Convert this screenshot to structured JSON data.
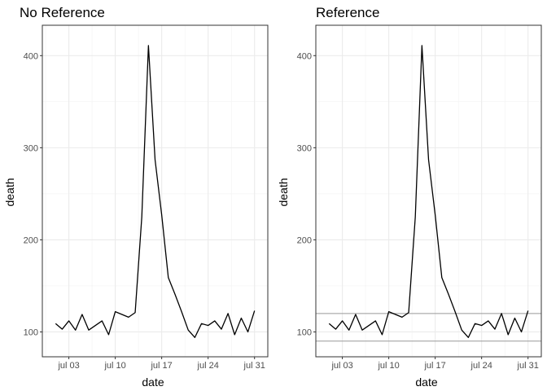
{
  "chart_data": [
    {
      "type": "line",
      "title": "No Reference",
      "xlabel": "date",
      "ylabel": "death",
      "x_tick_labels": [
        "jul 03",
        "jul 10",
        "jul 17",
        "jul 24",
        "jul 31"
      ],
      "y_tick_labels": [
        "100",
        "200",
        "300",
        "400"
      ],
      "x_ticks": [
        "2021-07-03",
        "2021-07-10",
        "2021-07-17",
        "2021-07-24",
        "2021-07-31"
      ],
      "y_ticks": [
        100,
        200,
        300,
        400
      ],
      "xlim": [
        "2020-06-29",
        "2020-08-02"
      ],
      "ylim": [
        73,
        433
      ],
      "grid": true,
      "reference_lines": [],
      "x": [
        "2021-07-01",
        "2021-07-02",
        "2021-07-03",
        "2021-07-04",
        "2021-07-05",
        "2021-07-06",
        "2021-07-07",
        "2021-07-08",
        "2021-07-09",
        "2021-07-10",
        "2021-07-11",
        "2021-07-12",
        "2021-07-13",
        "2021-07-14",
        "2021-07-15",
        "2021-07-16",
        "2021-07-17",
        "2021-07-18",
        "2021-07-19",
        "2021-07-20",
        "2021-07-21",
        "2021-07-22",
        "2021-07-23",
        "2021-07-24",
        "2021-07-25",
        "2021-07-26",
        "2021-07-27",
        "2021-07-28",
        "2021-07-29",
        "2021-07-30",
        "2021-07-31"
      ],
      "y": [
        109,
        103,
        112,
        102,
        119,
        102,
        107,
        112,
        97,
        122,
        119,
        116,
        121,
        225,
        411,
        287,
        227,
        159,
        141,
        122,
        102,
        94,
        109,
        107,
        112,
        103,
        120,
        97,
        115,
        100,
        123
      ]
    },
    {
      "type": "line",
      "title": "Reference",
      "xlabel": "date",
      "ylabel": "death",
      "x_tick_labels": [
        "jul 03",
        "jul 10",
        "jul 17",
        "jul 24",
        "jul 31"
      ],
      "y_tick_labels": [
        "100",
        "200",
        "300",
        "400"
      ],
      "x_ticks": [
        "2021-07-03",
        "2021-07-10",
        "2021-07-17",
        "2021-07-24",
        "2021-07-31"
      ],
      "y_ticks": [
        100,
        200,
        300,
        400
      ],
      "xlim": [
        "2020-06-29",
        "2020-08-02"
      ],
      "ylim": [
        73,
        433
      ],
      "grid": true,
      "reference_lines": [
        120,
        90
      ],
      "x": [
        "2021-07-01",
        "2021-07-02",
        "2021-07-03",
        "2021-07-04",
        "2021-07-05",
        "2021-07-06",
        "2021-07-07",
        "2021-07-08",
        "2021-07-09",
        "2021-07-10",
        "2021-07-11",
        "2021-07-12",
        "2021-07-13",
        "2021-07-14",
        "2021-07-15",
        "2021-07-16",
        "2021-07-17",
        "2021-07-18",
        "2021-07-19",
        "2021-07-20",
        "2021-07-21",
        "2021-07-22",
        "2021-07-23",
        "2021-07-24",
        "2021-07-25",
        "2021-07-26",
        "2021-07-27",
        "2021-07-28",
        "2021-07-29",
        "2021-07-30",
        "2021-07-31"
      ],
      "y": [
        109,
        103,
        112,
        102,
        119,
        102,
        107,
        112,
        97,
        122,
        119,
        116,
        121,
        225,
        411,
        287,
        227,
        159,
        141,
        122,
        102,
        94,
        109,
        107,
        112,
        103,
        120,
        97,
        115,
        100,
        123
      ]
    }
  ]
}
